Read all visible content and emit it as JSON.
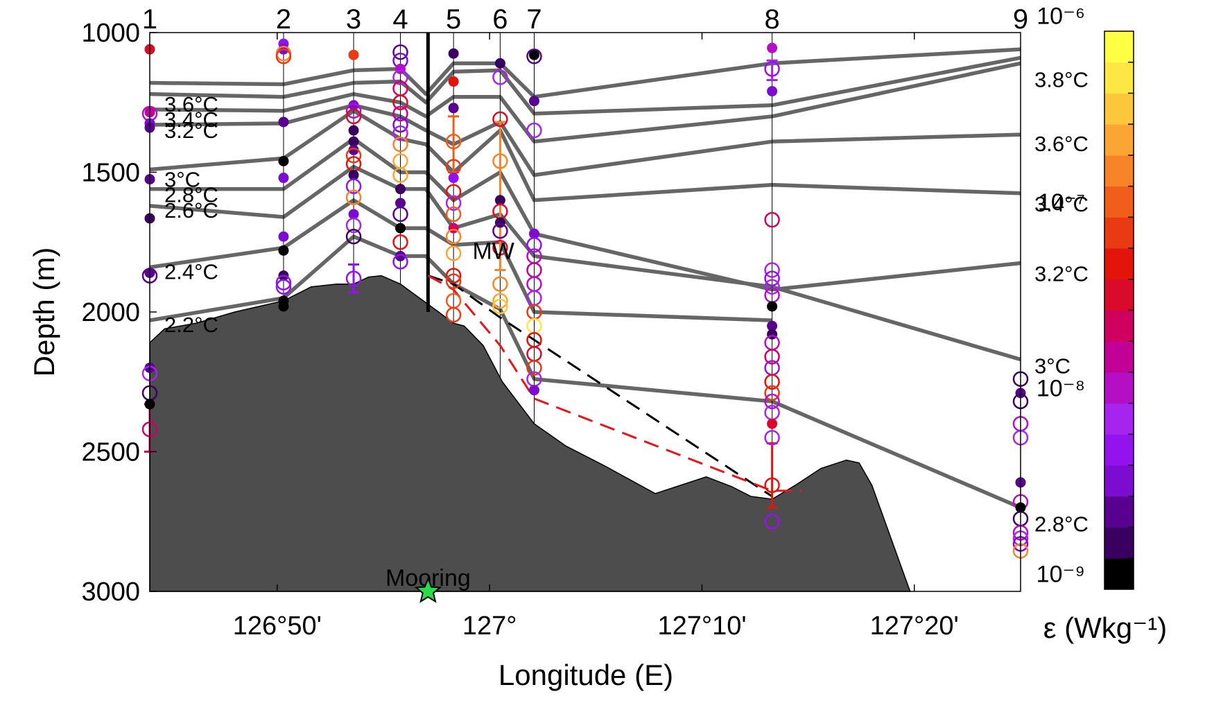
{
  "chart_data": {
    "type": "scatter",
    "title": "",
    "xlabel": "Longitude (E)",
    "ylabel": "Depth (m)",
    "xlim_min": [
      126.7333,
      127.4167
    ],
    "ylim": [
      1000,
      3000
    ],
    "y_inverted": true,
    "x_ticks": [
      {
        "value_min": 126.8333,
        "label": "126°50'"
      },
      {
        "value_min": 127.0,
        "label": "127°"
      },
      {
        "value_min": 127.1667,
        "label": "127°10'"
      },
      {
        "value_min": 127.3333,
        "label": "127°20'"
      }
    ],
    "y_ticks": [
      1000,
      1500,
      2000,
      2500,
      3000
    ],
    "stations": [
      {
        "label": "1",
        "lon": 126.7333
      },
      {
        "label": "2",
        "lon": 126.8383
      },
      {
        "label": "3",
        "lon": 126.8933
      },
      {
        "label": "4",
        "lon": 126.93
      },
      {
        "label": "5",
        "lon": 126.9717
      },
      {
        "label": "6",
        "lon": 127.0083
      },
      {
        "label": "7",
        "lon": 127.035
      },
      {
        "label": "8",
        "lon": 127.2217
      },
      {
        "label": "9",
        "lon": 127.4167
      }
    ],
    "isotherm_x": [
      126.7333,
      126.8383,
      126.8933,
      126.93,
      126.95,
      126.9717,
      127.0083,
      127.035,
      127.2217,
      127.4167
    ],
    "isotherms": [
      {
        "label": "3.8°C",
        "depths": [
          1180,
          1185,
          1135,
          1130,
          1220,
          1110,
          1110,
          1230,
          1110,
          1060
        ]
      },
      {
        "label": "3.6°C",
        "depths": [
          1220,
          1230,
          1180,
          1175,
          1250,
          1140,
          1135,
          1290,
          1260,
          1090
        ]
      },
      {
        "label": "3.4°C",
        "depths": [
          1275,
          1280,
          1220,
          1250,
          1300,
          1230,
          1230,
          1390,
          1300,
          1110
        ]
      },
      {
        "label": "3.2°C",
        "depths": [
          1330,
          1325,
          1260,
          1300,
          1350,
          1400,
          1320,
          1510,
          1390,
          1365
        ]
      },
      {
        "label": "3°C",
        "depths": [
          1490,
          1450,
          1280,
          1380,
          1400,
          1500,
          1350,
          1600,
          1545,
          1575
        ]
      },
      {
        "label": "2.8°C",
        "depths": [
          1560,
          1560,
          1380,
          1500,
          1500,
          1600,
          1500,
          1720,
          1920,
          1825
        ]
      },
      {
        "label": "2.6°C",
        "depths": [
          1620,
          1660,
          1480,
          1560,
          1560,
          1700,
          1650,
          1800,
          1910,
          2170
        ]
      },
      {
        "label": "2.4°C",
        "depths": [
          1840,
          1770,
          1600,
          1700,
          1700,
          1760,
          1750,
          2000,
          2030,
          null
        ]
      },
      {
        "label": "2.2°C",
        "depths": [
          2030,
          1950,
          1730,
          1800,
          1800,
          1900,
          1990,
          2240,
          2320,
          2700
        ]
      }
    ],
    "isotherm_labels_left": [
      "3.6°C",
      "3.4°C",
      "3.2°C",
      "3°C",
      "2.8°C",
      "2.6°C",
      "2.4°C",
      "2.2°C"
    ],
    "isotherm_labels_right": [
      "3.8°C",
      "3.6°C",
      "3.4°C",
      "3.2°C",
      "3°C",
      "2.8°C"
    ],
    "bathymetry": [
      [
        126.7333,
        2110
      ],
      [
        126.745,
        2060
      ],
      [
        126.77,
        2040
      ],
      [
        126.8,
        2000
      ],
      [
        126.8383,
        1960
      ],
      [
        126.86,
        1910
      ],
      [
        126.88,
        1900
      ],
      [
        126.8933,
        1900
      ],
      [
        126.905,
        1875
      ],
      [
        126.915,
        1870
      ],
      [
        126.93,
        1900
      ],
      [
        126.945,
        1950
      ],
      [
        126.96,
        2000
      ],
      [
        126.9717,
        2040
      ],
      [
        126.98,
        2050
      ],
      [
        126.995,
        2120
      ],
      [
        127.01,
        2250
      ],
      [
        127.035,
        2400
      ],
      [
        127.06,
        2480
      ],
      [
        127.09,
        2550
      ],
      [
        127.11,
        2600
      ],
      [
        127.13,
        2650
      ],
      [
        127.15,
        2620
      ],
      [
        127.17,
        2590
      ],
      [
        127.19,
        2625
      ],
      [
        127.205,
        2660
      ],
      [
        127.2217,
        2670
      ],
      [
        127.24,
        2620
      ],
      [
        127.26,
        2560
      ],
      [
        127.28,
        2530
      ],
      [
        127.29,
        2540
      ],
      [
        127.3,
        2620
      ],
      [
        127.33,
        3000
      ]
    ],
    "barrier_line": {
      "lon": 126.9517,
      "depth_range": [
        1000,
        2000
      ]
    },
    "dashed_black": [
      [
        126.9517,
        1870
      ],
      [
        126.9717,
        1900
      ],
      [
        127.0083,
        2020
      ],
      [
        127.2217,
        2660
      ]
    ],
    "dashed_red": [
      [
        126.9517,
        1870
      ],
      [
        126.9717,
        1920
      ],
      [
        127.0083,
        2120
      ],
      [
        127.035,
        2310
      ],
      [
        127.2217,
        2640
      ],
      [
        127.245,
        2640
      ]
    ],
    "annotations": [
      {
        "text": "MW",
        "lon": 127.003,
        "depth": 1780
      },
      {
        "text": "Mooring",
        "lon": 126.9517,
        "depth": 2950
      }
    ],
    "mooring": {
      "lon": 126.9517,
      "depth": 3000,
      "color": "#2bdc4a"
    },
    "colorbar": {
      "label": "ε (Wkg⁻¹)",
      "colors": [
        "#000000",
        "#3a0060",
        "#5a0090",
        "#7b0cd0",
        "#9312ee",
        "#a624ee",
        "#b50fc5",
        "#c20098",
        "#cf0060",
        "#da0a2a",
        "#e3140a",
        "#ea3a14",
        "#f15e1c",
        "#f78428",
        "#fba634",
        "#fdc73c",
        "#fde745",
        "#ffff44"
      ],
      "tick_labels": [
        "10⁻⁹",
        "10⁻⁸",
        "10⁻⁷",
        "10⁻⁶"
      ],
      "tick_positions": [
        1,
        7,
        13,
        19
      ]
    },
    "station_data": [
      {
        "station": "1",
        "points": [
          [
            1060,
            9,
            "filled"
          ],
          [
            1285,
            7,
            "filled"
          ],
          [
            1290,
            6,
            "open"
          ],
          [
            1325,
            3,
            "filled"
          ],
          [
            1340,
            2,
            "filled"
          ],
          [
            1525,
            2,
            "filled"
          ],
          [
            1665,
            1,
            "filled"
          ],
          [
            1860,
            2,
            "filled"
          ],
          [
            1870,
            2,
            "open"
          ],
          [
            2200,
            2,
            "filled"
          ],
          [
            2220,
            5,
            "open"
          ],
          [
            2290,
            1,
            "open"
          ],
          [
            2330,
            0,
            "filled"
          ],
          [
            2420,
            8,
            "open"
          ]
        ]
      },
      {
        "station": "2",
        "points": [
          [
            1040,
            4,
            "filled"
          ],
          [
            1060,
            3,
            "filled"
          ],
          [
            1075,
            13,
            "open"
          ],
          [
            1085,
            11,
            "open"
          ],
          [
            1320,
            2,
            "filled"
          ],
          [
            1460,
            0,
            "filled"
          ],
          [
            1520,
            3,
            "filled"
          ],
          [
            1730,
            3,
            "filled"
          ],
          [
            1780,
            0,
            "filled"
          ],
          [
            1870,
            1,
            "filled"
          ],
          [
            1895,
            4,
            "open"
          ],
          [
            1910,
            4,
            "open"
          ],
          [
            1960,
            0,
            "filled"
          ],
          [
            1980,
            0,
            "filled"
          ]
        ]
      },
      {
        "station": "3",
        "points": [
          [
            1080,
            11,
            "filled"
          ],
          [
            1260,
            3,
            "filled"
          ],
          [
            1280,
            6,
            "open"
          ],
          [
            1300,
            9,
            "open"
          ],
          [
            1350,
            1,
            "filled"
          ],
          [
            1390,
            1,
            "filled"
          ],
          [
            1420,
            2,
            "filled"
          ],
          [
            1440,
            11,
            "open"
          ],
          [
            1470,
            10,
            "open"
          ],
          [
            1510,
            1,
            "filled"
          ],
          [
            1550,
            4,
            "open"
          ],
          [
            1590,
            13,
            "open"
          ],
          [
            1650,
            3,
            "filled"
          ],
          [
            1690,
            5,
            "open"
          ],
          [
            1730,
            1,
            "open"
          ],
          [
            1880,
            4,
            "open"
          ]
        ]
      },
      {
        "station": "4",
        "points": [
          [
            1070,
            2,
            "open"
          ],
          [
            1100,
            3,
            "open"
          ],
          [
            1130,
            6,
            "filled"
          ],
          [
            1160,
            5,
            "open"
          ],
          [
            1200,
            8,
            "open"
          ],
          [
            1250,
            9,
            "open"
          ],
          [
            1290,
            7,
            "open"
          ],
          [
            1330,
            3,
            "open"
          ],
          [
            1360,
            5,
            "open"
          ],
          [
            1400,
            13,
            "open"
          ],
          [
            1460,
            14,
            "open"
          ],
          [
            1510,
            14,
            "open"
          ],
          [
            1560,
            1,
            "filled"
          ],
          [
            1610,
            2,
            "filled"
          ],
          [
            1650,
            2,
            "open"
          ],
          [
            1700,
            0,
            "filled"
          ],
          [
            1750,
            10,
            "open"
          ],
          [
            1800,
            2,
            "filled"
          ],
          [
            1820,
            4,
            "open"
          ]
        ]
      },
      {
        "station": "5",
        "points": [
          [
            1075,
            1,
            "filled"
          ],
          [
            1175,
            10,
            "filled"
          ],
          [
            1270,
            2,
            "filled"
          ],
          [
            1390,
            12,
            "open"
          ],
          [
            1480,
            11,
            "open"
          ],
          [
            1520,
            4,
            "filled"
          ],
          [
            1570,
            10,
            "open"
          ],
          [
            1610,
            5,
            "open"
          ],
          [
            1650,
            12,
            "open"
          ],
          [
            1700,
            8,
            "filled"
          ],
          [
            1730,
            13,
            "open"
          ],
          [
            1790,
            14,
            "open"
          ],
          [
            1870,
            10,
            "open"
          ],
          [
            1890,
            11,
            "open"
          ],
          [
            1960,
            12,
            "open"
          ],
          [
            2010,
            11,
            "open"
          ]
        ]
      },
      {
        "station": "6",
        "points": [
          [
            1110,
            1,
            "filled"
          ],
          [
            1160,
            5,
            "open"
          ],
          [
            1310,
            9,
            "open"
          ],
          [
            1460,
            13,
            "open"
          ],
          [
            1600,
            1,
            "filled"
          ],
          [
            1640,
            9,
            "open"
          ],
          [
            1680,
            1,
            "filled"
          ],
          [
            1710,
            2,
            "open"
          ],
          [
            1770,
            9,
            "open"
          ],
          [
            1900,
            13,
            "open"
          ],
          [
            1960,
            14,
            "open"
          ],
          [
            1980,
            15,
            "open"
          ]
        ]
      },
      {
        "station": "7",
        "points": [
          [
            1080,
            0,
            "filled"
          ],
          [
            1085,
            2,
            "open"
          ],
          [
            1245,
            2,
            "filled"
          ],
          [
            1350,
            5,
            "open"
          ],
          [
            1720,
            3,
            "filled"
          ],
          [
            1760,
            4,
            "open"
          ],
          [
            1800,
            6,
            "open"
          ],
          [
            1850,
            7,
            "open"
          ],
          [
            1900,
            6,
            "open"
          ],
          [
            1950,
            5,
            "open"
          ],
          [
            2000,
            11,
            "open"
          ],
          [
            2050,
            16,
            "open"
          ],
          [
            2100,
            10,
            "open"
          ],
          [
            2150,
            9,
            "open"
          ],
          [
            2200,
            11,
            "open"
          ],
          [
            2240,
            5,
            "open"
          ],
          [
            2280,
            3,
            "filled"
          ]
        ]
      },
      {
        "station": "8",
        "points": [
          [
            1055,
            6,
            "filled"
          ],
          [
            1130,
            4,
            "open"
          ],
          [
            1210,
            3,
            "filled"
          ],
          [
            1670,
            8,
            "open"
          ],
          [
            1850,
            5,
            "open"
          ],
          [
            1880,
            4,
            "open"
          ],
          [
            1910,
            5,
            "open"
          ],
          [
            1940,
            6,
            "open"
          ],
          [
            1980,
            0,
            "filled"
          ],
          [
            2050,
            2,
            "filled"
          ],
          [
            2080,
            1,
            "filled"
          ],
          [
            2110,
            6,
            "open"
          ],
          [
            2160,
            8,
            "open"
          ],
          [
            2200,
            4,
            "open"
          ],
          [
            2250,
            10,
            "open"
          ],
          [
            2290,
            11,
            "open"
          ],
          [
            2320,
            6,
            "open"
          ],
          [
            2360,
            5,
            "open"
          ],
          [
            2400,
            9,
            "filled"
          ],
          [
            2450,
            5,
            "open"
          ],
          [
            2620,
            10,
            "open"
          ],
          [
            2750,
            4,
            "open"
          ]
        ]
      },
      {
        "station": "9",
        "points": [
          [
            2240,
            1,
            "open"
          ],
          [
            2290,
            2,
            "filled"
          ],
          [
            2320,
            1,
            "open"
          ],
          [
            2400,
            6,
            "open"
          ],
          [
            2450,
            5,
            "open"
          ],
          [
            2610,
            2,
            "filled"
          ],
          [
            2680,
            6,
            "open"
          ],
          [
            2700,
            0,
            "filled"
          ],
          [
            2740,
            1,
            "open"
          ],
          [
            2790,
            6,
            "open"
          ],
          [
            2810,
            5,
            "open"
          ],
          [
            2830,
            3,
            "open"
          ],
          [
            2855,
            13,
            "open"
          ]
        ]
      }
    ],
    "error_bars": [
      {
        "station": "1",
        "depth": 2420,
        "range": [
          2330,
          2500
        ],
        "color_index": 8
      },
      {
        "station": "3",
        "depth": 1880,
        "range": [
          1830,
          1930
        ],
        "color_index": 4
      },
      {
        "station": "5",
        "depth": 1390,
        "range": [
          1300,
          1500
        ],
        "color_index": 12
      },
      {
        "station": "6",
        "depth": 1460,
        "range": [
          1320,
          1850
        ],
        "color_index": 13
      },
      {
        "station": "8",
        "depth": 2620,
        "range": [
          2470,
          2700
        ],
        "color_index": 10
      },
      {
        "station": "8",
        "depth": 1130,
        "range": [
          1100,
          1170
        ],
        "color_index": 5
      }
    ]
  }
}
